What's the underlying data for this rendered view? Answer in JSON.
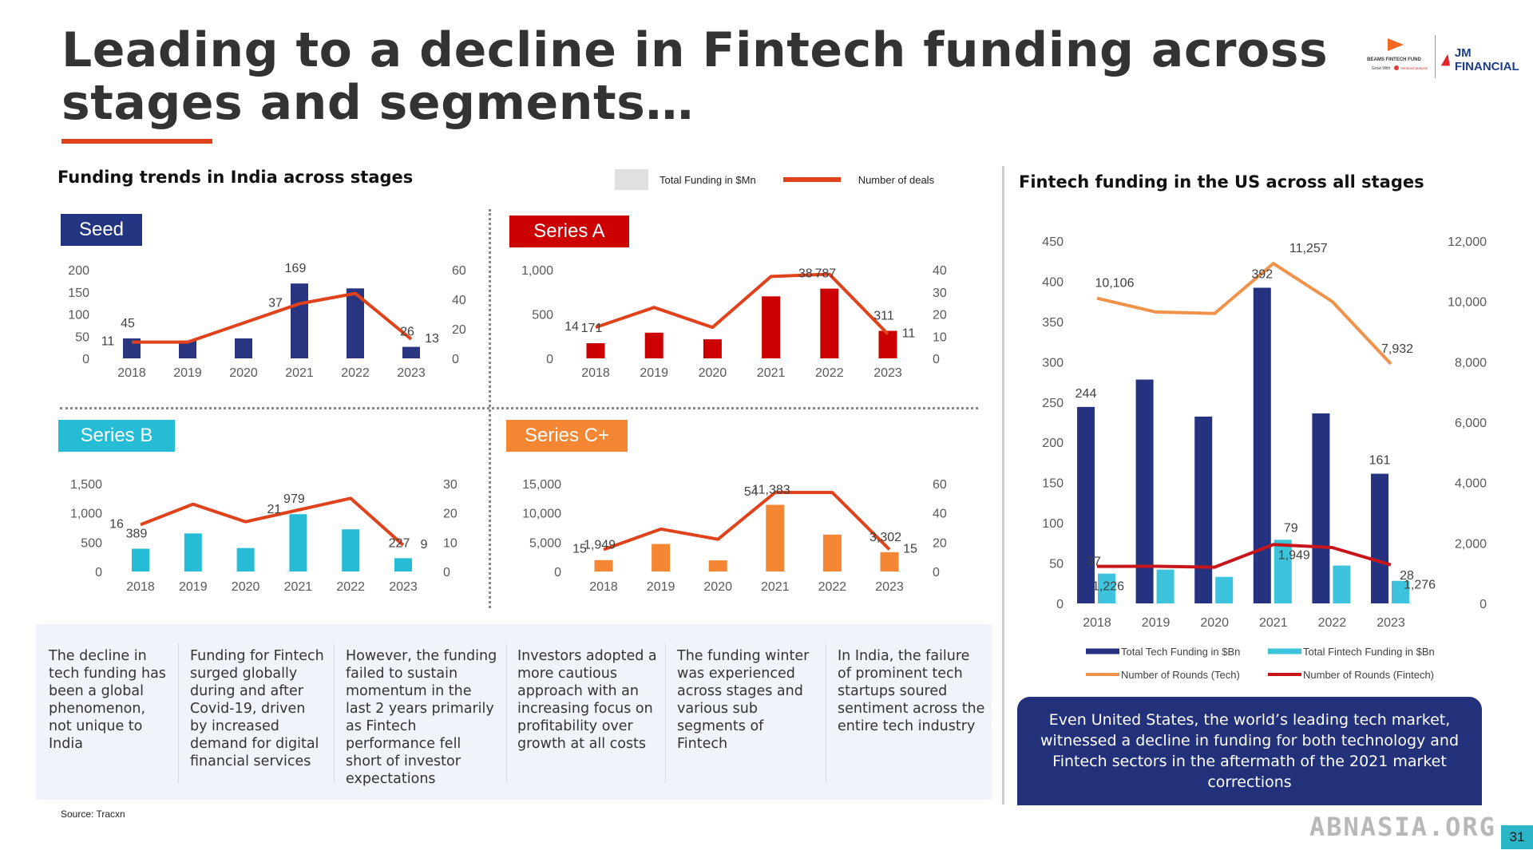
{
  "title_line1": "Leading to a decline in Fintech funding across",
  "title_line2": "stages and segments…",
  "logos": {
    "beams_line1": "BEAMS FINTECH FUND",
    "beams_line2": "Grow With",
    "beams_line3": "VentureCatalysts",
    "jm": "JM FINANCIAL"
  },
  "india_section_title": "Funding trends in India across stages",
  "us_section_title": "Fintech funding in the US across all stages",
  "legend": {
    "funding": "Total Funding in $Mn",
    "deals": "Number of deals"
  },
  "colors": {
    "accent": "#e0421b",
    "navy": "#2a3580",
    "red": "#cc0000",
    "cyan": "#26bcd6",
    "orange": "#f58634",
    "us_navy": "#253280",
    "us_cyan": "#3ec3dc",
    "us_orange": "#f0924a",
    "us_red": "#c8151b"
  },
  "stages": [
    {
      "label": "Seed",
      "color": "#233581"
    },
    {
      "label": "Series A",
      "color": "#cc0000"
    },
    {
      "label": "Series B",
      "color": "#26bcd6"
    },
    {
      "label": "Series C+",
      "color": "#f58634"
    }
  ],
  "chart_data": [
    {
      "type": "bar+line",
      "name": "Seed",
      "categories": [
        "2018",
        "2019",
        "2020",
        "2021",
        "2022",
        "2023"
      ],
      "bar_values": [
        45,
        40,
        45,
        169,
        158,
        26
      ],
      "line_values": [
        11,
        11,
        24,
        37,
        44,
        13
      ],
      "bar_labels": [
        "45",
        "",
        "",
        "169",
        "",
        "26"
      ],
      "line_labels": [
        "11",
        "",
        "",
        "37",
        "",
        "13"
      ],
      "yticks_left": [
        "200",
        "150",
        "100",
        "50",
        "0"
      ],
      "yticks_right": [
        "60",
        "40",
        "20",
        "0"
      ],
      "ylim_left": [
        0,
        200
      ],
      "ylim_right": [
        0,
        60
      ]
    },
    {
      "type": "bar+line",
      "name": "Series A",
      "categories": [
        "2018",
        "2019",
        "2020",
        "2021",
        "2022",
        "2023"
      ],
      "bar_values": [
        171,
        290,
        215,
        700,
        787,
        311
      ],
      "line_values": [
        14,
        23,
        14,
        37,
        38,
        11
      ],
      "bar_labels": [
        "171",
        "",
        "",
        "",
        "787",
        "311"
      ],
      "line_labels": [
        "14",
        "",
        "",
        "",
        "38",
        "11"
      ],
      "yticks_left": [
        "1,000",
        "500",
        "0"
      ],
      "yticks_right": [
        "40",
        "30",
        "20",
        "10",
        "0"
      ],
      "ylim_left": [
        0,
        1000
      ],
      "ylim_right": [
        0,
        40
      ]
    },
    {
      "type": "bar+line",
      "name": "Series B",
      "categories": [
        "2018",
        "2019",
        "2020",
        "2021",
        "2022",
        "2023"
      ],
      "bar_values": [
        389,
        650,
        400,
        979,
        720,
        227
      ],
      "line_values": [
        16,
        23,
        17,
        21,
        25,
        9
      ],
      "bar_labels": [
        "389",
        "",
        "",
        "979",
        "",
        "227"
      ],
      "line_labels": [
        "16",
        "",
        "",
        "21",
        "",
        "9"
      ],
      "yticks_left": [
        "1,500",
        "1,000",
        "500",
        "0"
      ],
      "yticks_right": [
        "30",
        "20",
        "10",
        "0"
      ],
      "ylim_left": [
        0,
        1500
      ],
      "ylim_right": [
        0,
        30
      ]
    },
    {
      "type": "bar+line",
      "name": "Series C+",
      "categories": [
        "2018",
        "2019",
        "2020",
        "2021",
        "2022",
        "2023"
      ],
      "bar_values": [
        1949,
        4700,
        1900,
        11383,
        6300,
        3302
      ],
      "line_values": [
        15,
        29,
        22,
        54,
        54,
        15
      ],
      "bar_labels": [
        "1,949",
        "",
        "",
        "11,383",
        "",
        "3,302"
      ],
      "line_labels": [
        "15",
        "",
        "",
        "54",
        "",
        "15"
      ],
      "yticks_left": [
        "15,000",
        "10,000",
        "5,000",
        "0"
      ],
      "yticks_right": [
        "60",
        "40",
        "20",
        "0"
      ],
      "ylim_left": [
        0,
        15000
      ],
      "ylim_right": [
        0,
        60
      ]
    },
    {
      "type": "bar+line",
      "name": "US",
      "categories": [
        "2018",
        "2019",
        "2020",
        "2021",
        "2022",
        "2023"
      ],
      "series": [
        {
          "name": "Total Tech Funding in $Bn",
          "type": "bar",
          "axis": "left",
          "values": [
            244,
            278,
            232,
            392,
            236,
            161
          ],
          "labels": [
            "244",
            "",
            "",
            "392",
            "",
            "161"
          ]
        },
        {
          "name": "Total Fintech Funding in $Bn",
          "type": "bar",
          "axis": "left",
          "values": [
            37,
            42,
            33,
            79,
            47,
            28
          ],
          "labels": [
            "37",
            "",
            "",
            "79",
            "",
            "28"
          ]
        },
        {
          "name": "Number of Rounds (Tech)",
          "type": "line",
          "axis": "right",
          "values": [
            10106,
            9650,
            9600,
            11257,
            10000,
            7932
          ],
          "labels": [
            "10,106",
            "",
            "",
            "11,257",
            "",
            "7,932"
          ]
        },
        {
          "name": "Number of Rounds (Fintech)",
          "type": "line",
          "axis": "right",
          "values": [
            1226,
            1230,
            1200,
            1949,
            1850,
            1276
          ],
          "labels": [
            "1,226",
            "",
            "",
            "1,949",
            "",
            "1,276"
          ]
        }
      ],
      "yticks_left": [
        "450",
        "400",
        "350",
        "300",
        "250",
        "200",
        "150",
        "100",
        "50",
        "0"
      ],
      "yticks_right": [
        "12,000",
        "10,000",
        "8,000",
        "6,000",
        "4,000",
        "2,000",
        "0"
      ],
      "ylim_left": [
        0,
        450
      ],
      "ylim_right": [
        0,
        12000
      ]
    }
  ],
  "notes": [
    "The decline in tech funding has been a global phenomenon, not unique to India",
    "Funding for Fintech surged globally during and after Covid-19, driven by increased demand for digital financial services",
    "However, the funding failed to sustain momentum in the last 2 years primarily as Fintech performance fell short of investor expectations",
    "Investors adopted a more cautious approach with an increasing focus on profitability over growth at all costs",
    "The funding winter was experienced across stages and various sub segments of Fintech",
    "In India, the failure of prominent tech startups soured sentiment across the entire tech industry"
  ],
  "us_callout": "Even United States, the world’s leading tech market, witnessed a decline in funding for both technology and Fintech sectors in the aftermath of the 2021 market corrections",
  "source": "Source: Tracxn",
  "watermark": "ABNASIA.ORG",
  "page_number": "31"
}
